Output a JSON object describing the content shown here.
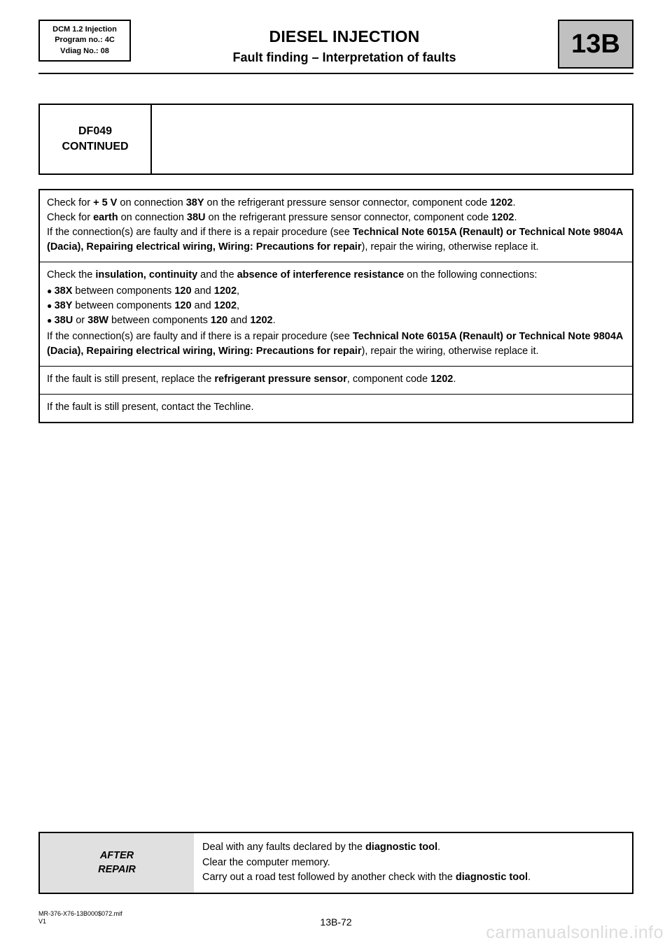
{
  "header": {
    "left_box": {
      "line1": "DCM 1.2 Injection",
      "line2": "Program no.: 4C",
      "line3": "Vdiag No.: 08"
    },
    "title": "DIESEL INJECTION",
    "subtitle": "Fault finding – Interpretation of faults",
    "section_code": "13B"
  },
  "fault_bar": {
    "code": "DF049",
    "status": "CONTINUED"
  },
  "steps": [
    {
      "html": "Check for <b>+ 5 V</b> on connection <b>38Y</b> on the refrigerant pressure sensor connector, component code <b>1202</b>.<br>Check for <b>earth</b> on connection <b>38U</b> on the refrigerant pressure sensor connector, component code <b>1202</b>.<br>If the connection(s) are faulty and if there is a repair procedure (see <b>Technical Note 6015A (Renault) or Technical Note 9804A (Dacia), Repairing electrical wiring, Wiring: Precautions for repair</b>), repair the wiring, otherwise replace it."
    },
    {
      "html": "Check the <b>insulation, continuity</b> and the <b>absence of interference resistance</b> on the following connections:<ul class=\"bullets\"><li><b>38X</b> between components <b>120</b> and <b>1202</b>,</li><li><b>38Y</b> between components <b>120</b> and <b>1202</b>,</li><li><b>38U</b> or <b>38W</b> between components <b>120</b> and <b>1202</b>.</li></ul>If the connection(s) are faulty and if there is a repair procedure (see <b>Technical Note 6015A (Renault) or Technical Note 9804A (Dacia), Repairing electrical wiring, Wiring: Precautions for repair</b>), repair the wiring, otherwise replace it."
    },
    {
      "html": "If the fault is still present, replace the <b>refrigerant pressure sensor</b>, component code <b>1202</b>."
    },
    {
      "html": "If the fault is still present, contact the Techline."
    }
  ],
  "after_repair": {
    "label_line1": "AFTER",
    "label_line2": "REPAIR",
    "body_html": "Deal with any faults declared by the <b>diagnostic tool</b>.<br>Clear the computer memory.<br>Carry out a road test followed by another check with the <b>diagnostic tool</b>."
  },
  "footer": {
    "doc_ref": "MR-376-X76-13B000$072.mif",
    "version": "V1",
    "page": "13B-72"
  },
  "watermark": "carmanualsonline.info",
  "colors": {
    "section_box_bg": "#c0c0c0",
    "after_repair_bg": "#e0e0e0",
    "watermark": "#dcdcdc",
    "text": "#000000",
    "background": "#ffffff"
  }
}
